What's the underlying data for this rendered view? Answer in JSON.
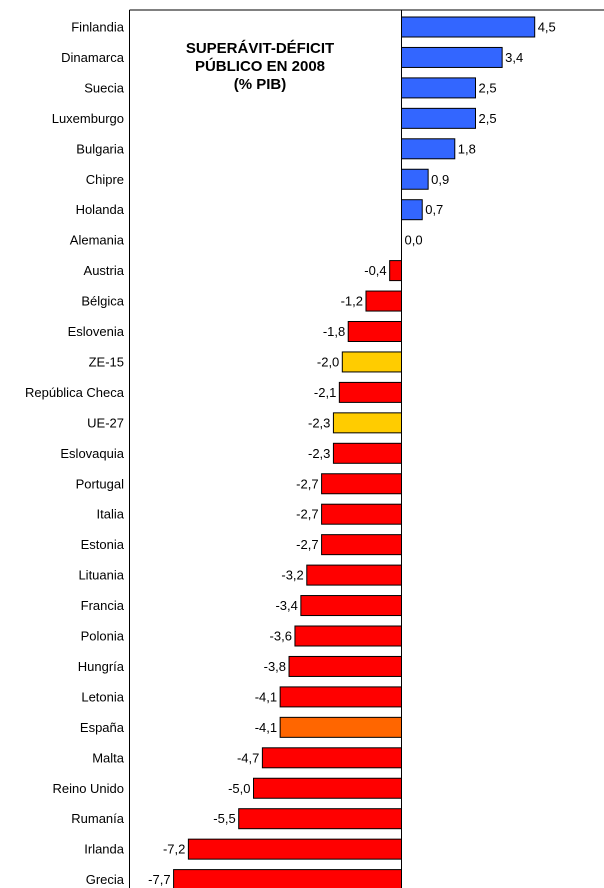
{
  "chart_data": {
    "type": "bar",
    "orientation": "horizontal",
    "title_lines": [
      "SUPERÁVIT-DÉFICIT",
      "PÚBLICO EN 2008",
      "(% PIB)"
    ],
    "categories": [
      "Finlandia",
      "Dinamarca",
      "Suecia",
      "Luxemburgo",
      "Bulgaria",
      "Chipre",
      "Holanda",
      "Alemania",
      "Austria",
      "Bélgica",
      "Eslovenia",
      "ZE-15",
      "República Checa",
      "UE-27",
      "Eslovaquia",
      "Portugal",
      "Italia",
      "Estonia",
      "Lituania",
      "Francia",
      "Polonia",
      "Hungría",
      "Letonia",
      "España",
      "Malta",
      "Reino Unido",
      "Rumanía",
      "Irlanda",
      "Grecia"
    ],
    "values": [
      4.5,
      3.4,
      2.5,
      2.5,
      1.8,
      0.9,
      0.7,
      0.0,
      -0.4,
      -1.2,
      -1.8,
      -2.0,
      -2.1,
      -2.3,
      -2.3,
      -2.7,
      -2.7,
      -2.7,
      -3.2,
      -3.4,
      -3.6,
      -3.8,
      -4.1,
      -4.1,
      -4.7,
      -5.0,
      -5.5,
      -7.2,
      -7.7
    ],
    "value_labels": [
      "4,5",
      "3,4",
      "2,5",
      "2,5",
      "1,8",
      "0,9",
      "0,7",
      "0,0",
      "-0,4",
      "-1,2",
      "-1,8",
      "-2,0",
      "-2,1",
      "-2,3",
      "-2,3",
      "-2,7",
      "-2,7",
      "-2,7",
      "-3,2",
      "-3,4",
      "-3,6",
      "-3,8",
      "-4,1",
      "-4,1",
      "-4,7",
      "-5,0",
      "-5,5",
      "-7,2",
      "-7,7"
    ],
    "xlim": [
      -8.5,
      6.3
    ],
    "grid": false,
    "colors": {
      "positive": "#3366ff",
      "negative": "#ff0000",
      "aggregate": "#ffcc00",
      "highlight": "#ff6600"
    },
    "aggregate_categories": [
      "ZE-15",
      "UE-27"
    ],
    "highlight_categories": [
      "España"
    ]
  }
}
